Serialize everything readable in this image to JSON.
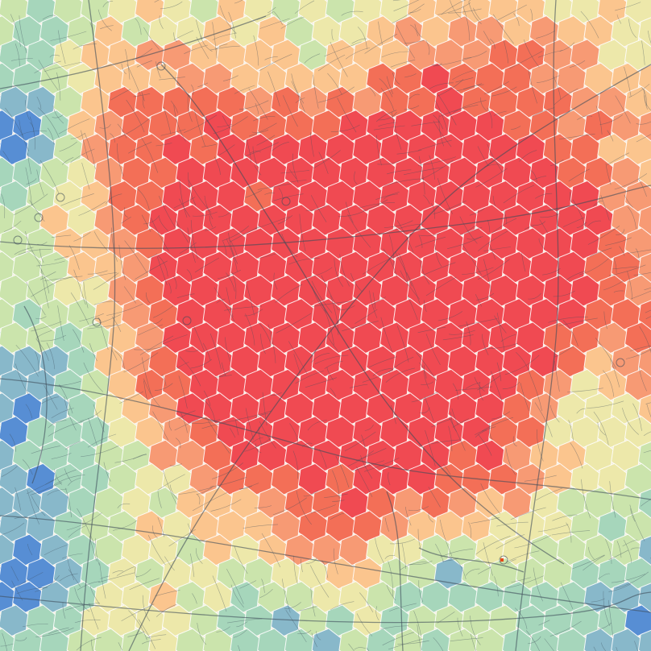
{
  "map": {
    "layer": "hexbin",
    "palette": [
      "#f03c46",
      "#f3644c",
      "#f7926b",
      "#fcc188",
      "#ede7a6",
      "#c8e3a8",
      "#9fd4b9",
      "#7fb3c9",
      "#4a86d4"
    ],
    "hex_outline": "#ffffff",
    "basemap_color": "#3f4d5a",
    "marker_color": "#e64a19"
  }
}
